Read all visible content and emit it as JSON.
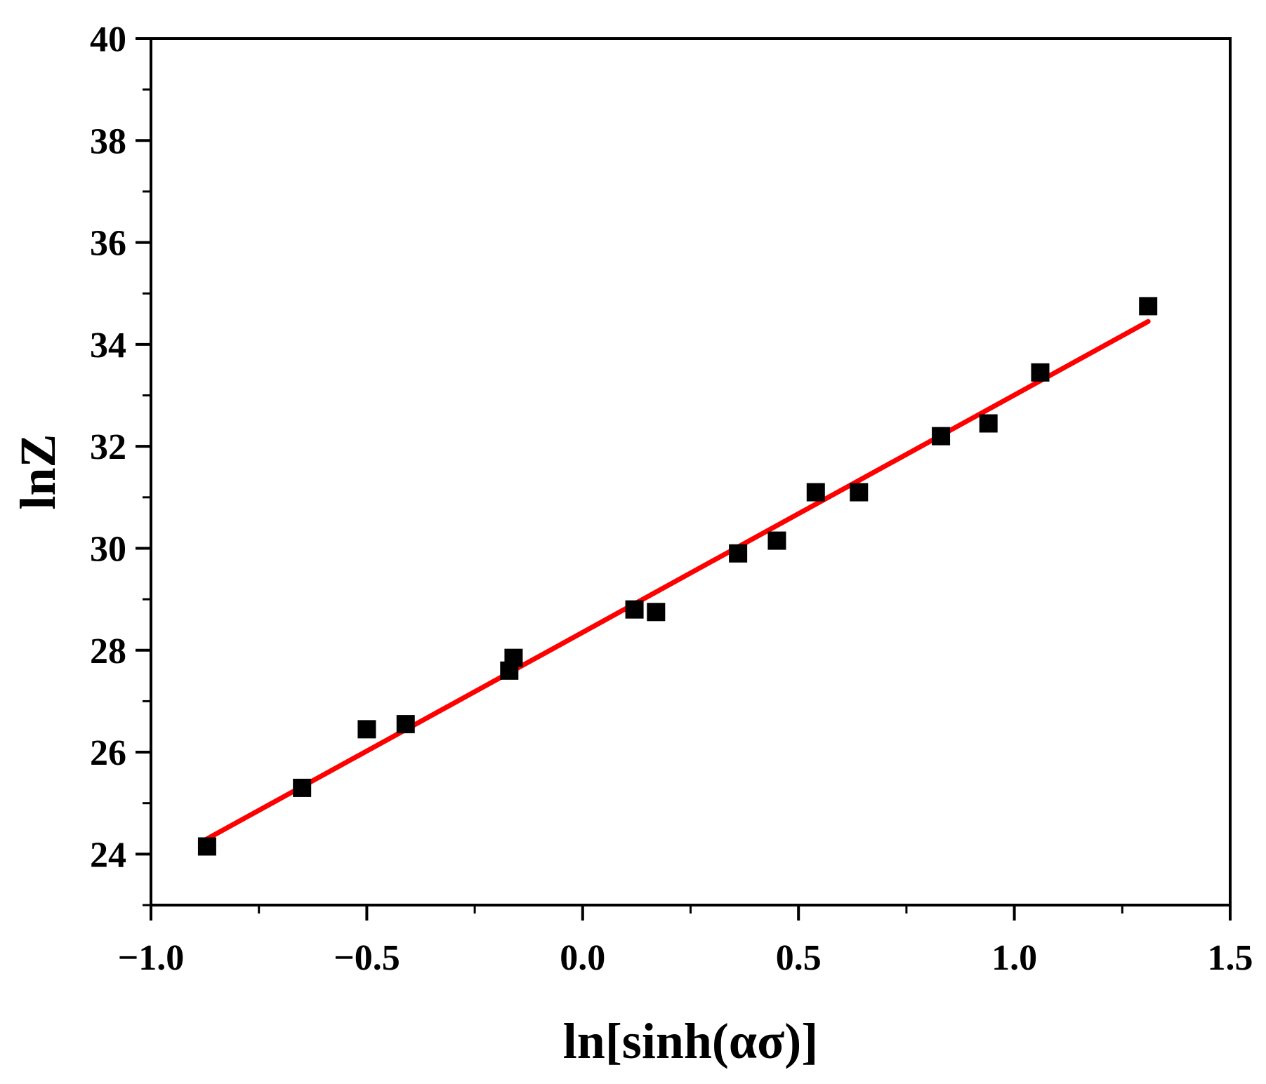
{
  "chart_data": {
    "type": "scatter",
    "title": "",
    "xlabel": "ln[sinh(ασ)]",
    "ylabel": "lnZ",
    "xlim": [
      -1.0,
      1.5
    ],
    "ylim": [
      23,
      40
    ],
    "x_ticks": [
      -1.0,
      -0.5,
      0.0,
      0.5,
      1.0,
      1.5
    ],
    "x_tick_labels": [
      "−1.0",
      "−0.5",
      "0.0",
      "0.5",
      "1.0",
      "1.5"
    ],
    "y_ticks": [
      24,
      26,
      28,
      30,
      32,
      34,
      36,
      38,
      40
    ],
    "y_tick_labels": [
      "24",
      "26",
      "28",
      "30",
      "32",
      "34",
      "36",
      "38",
      "40"
    ],
    "x_minor_step": 0.25,
    "y_minor_step": 1,
    "grid": false,
    "legend": "none",
    "series": [
      {
        "marker": "square",
        "color": "#000000",
        "points": [
          {
            "x": -0.87,
            "y": 24.15
          },
          {
            "x": -0.65,
            "y": 25.3
          },
          {
            "x": -0.5,
            "y": 26.45
          },
          {
            "x": -0.41,
            "y": 26.55
          },
          {
            "x": -0.17,
            "y": 27.6
          },
          {
            "x": -0.16,
            "y": 27.85
          },
          {
            "x": 0.12,
            "y": 28.8
          },
          {
            "x": 0.17,
            "y": 28.75
          },
          {
            "x": 0.36,
            "y": 29.9
          },
          {
            "x": 0.45,
            "y": 30.15
          },
          {
            "x": 0.54,
            "y": 31.1
          },
          {
            "x": 0.64,
            "y": 31.1
          },
          {
            "x": 0.83,
            "y": 32.2
          },
          {
            "x": 0.94,
            "y": 32.45
          },
          {
            "x": 1.06,
            "y": 33.45
          },
          {
            "x": 1.31,
            "y": 34.75
          }
        ]
      },
      {
        "type": "line",
        "color": "#ff0000",
        "points": [
          {
            "x": -0.87,
            "y": 24.3
          },
          {
            "x": 1.31,
            "y": 34.45
          }
        ]
      }
    ]
  }
}
